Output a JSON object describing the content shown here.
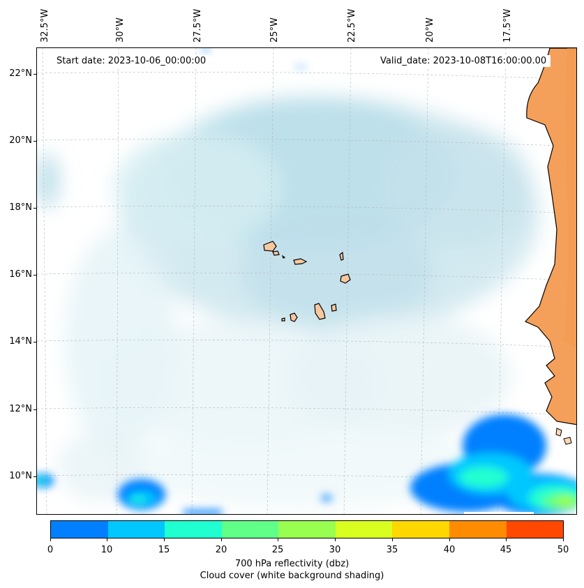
{
  "map": {
    "start_date": "Start date: 2023-10-06_00:00:00",
    "valid_date": "Valid_date: 2023-10-08T16:00:00.00",
    "longitude_labels": [
      "32.5°W",
      "30°W",
      "27.5°W",
      "25°W",
      "22.5°W",
      "20°W",
      "17.5°W"
    ],
    "latitude_labels": [
      "22°N",
      "20°N",
      "18°N",
      "16°N",
      "14°N",
      "12°N",
      "10°N"
    ],
    "land_color": "#f4a05a",
    "island_color": "#f6c8a0",
    "cloud_color": "#a8d8e6"
  },
  "colorbar": {
    "ticks": [
      "0",
      "10",
      "15",
      "20",
      "25",
      "30",
      "35",
      "40",
      "45",
      "50"
    ],
    "colors": [
      "#0080ff",
      "#00c8ff",
      "#20ffd0",
      "#60ff88",
      "#98ff50",
      "#d8ff20",
      "#ffd800",
      "#ff8c00",
      "#ff4800"
    ],
    "label_line1": "700 hPa reflectivity (dbz)",
    "label_line2": "Cloud cover (white background shading)"
  }
}
